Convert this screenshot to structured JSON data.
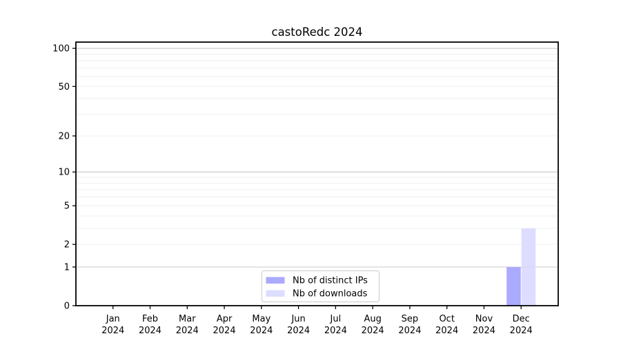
{
  "figure": {
    "background": "#ffffff"
  },
  "chart_data": {
    "type": "bar",
    "title": "castoRedc 2024",
    "categories": [
      "Jan",
      "Feb",
      "Mar",
      "Apr",
      "May",
      "Jun",
      "Jul",
      "Aug",
      "Sep",
      "Oct",
      "Nov",
      "Dec"
    ],
    "xtick_year": "2024",
    "series": [
      {
        "name": "Nb of distinct IPs",
        "color": "#aaaaff",
        "values": [
          0,
          0,
          0,
          0,
          0,
          0,
          0,
          0,
          0,
          0,
          0,
          1
        ]
      },
      {
        "name": "Nb of downloads",
        "color": "#ddddff",
        "values": [
          0,
          0,
          0,
          0,
          0,
          0,
          0,
          0,
          0,
          0,
          0,
          3
        ]
      }
    ],
    "xlabel": "",
    "ylabel": "",
    "yscale": "log1p",
    "ylim": [
      0,
      112
    ],
    "yticks": [
      0,
      1,
      2,
      5,
      10,
      20,
      50,
      100
    ],
    "grid": {
      "enabled": true,
      "major_values": [
        1,
        10,
        100
      ],
      "minor_values": [
        2,
        3,
        4,
        5,
        6,
        7,
        8,
        9,
        20,
        30,
        40,
        50,
        60,
        70,
        80,
        90
      ],
      "major_color": "#c8c8c8",
      "minor_color": "#efefef"
    },
    "legend": {
      "position": "lower center"
    },
    "axis_color": "#000000",
    "text_color": "#000000"
  }
}
